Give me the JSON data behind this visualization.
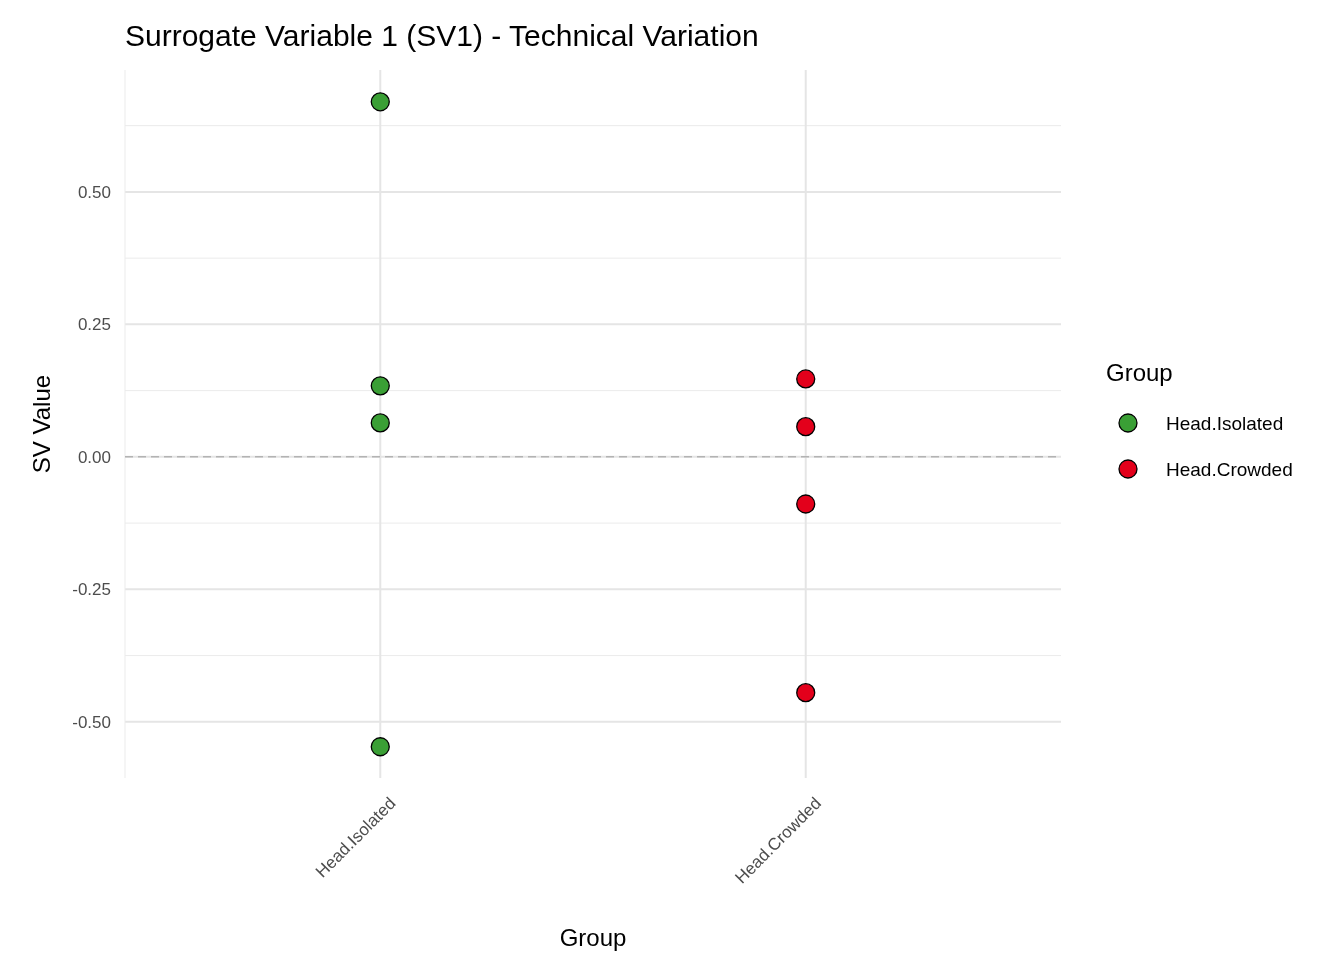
{
  "chart_data": {
    "type": "scatter",
    "title": "Surrogate Variable 1 (SV1) - Technical Variation",
    "xlabel": "Group",
    "ylabel": "SV Value",
    "legend_title": "Group",
    "categories": [
      "Head.Isolated",
      "Head.Crowded"
    ],
    "ylim": [
      -0.606,
      0.73
    ],
    "yticks": [
      {
        "value": -0.5,
        "label": "-0.50"
      },
      {
        "value": -0.25,
        "label": "-0.25"
      },
      {
        "value": 0,
        "label": "0.00"
      },
      {
        "value": 0.25,
        "label": "0.25"
      },
      {
        "value": 0.5,
        "label": "0.50"
      }
    ],
    "series": [
      {
        "name": "Head.Isolated",
        "color": "#3a9f35",
        "x": [
          "Head.Isolated",
          "Head.Isolated",
          "Head.Isolated",
          "Head.Isolated"
        ],
        "values": [
          0.67,
          -0.547,
          0.064,
          0.134
        ]
      },
      {
        "name": "Head.Crowded",
        "color": "#e3001b",
        "x": [
          "Head.Crowded",
          "Head.Crowded",
          "Head.Crowded",
          "Head.Crowded"
        ],
        "values": [
          0.147,
          0.057,
          -0.089,
          -0.445
        ]
      }
    ],
    "ref_lines": [
      {
        "axis": "y",
        "value": 0,
        "color": "#b3b3b3",
        "line_style": "dashed"
      }
    ],
    "grid": true,
    "legend": "right",
    "marker": "circle"
  }
}
